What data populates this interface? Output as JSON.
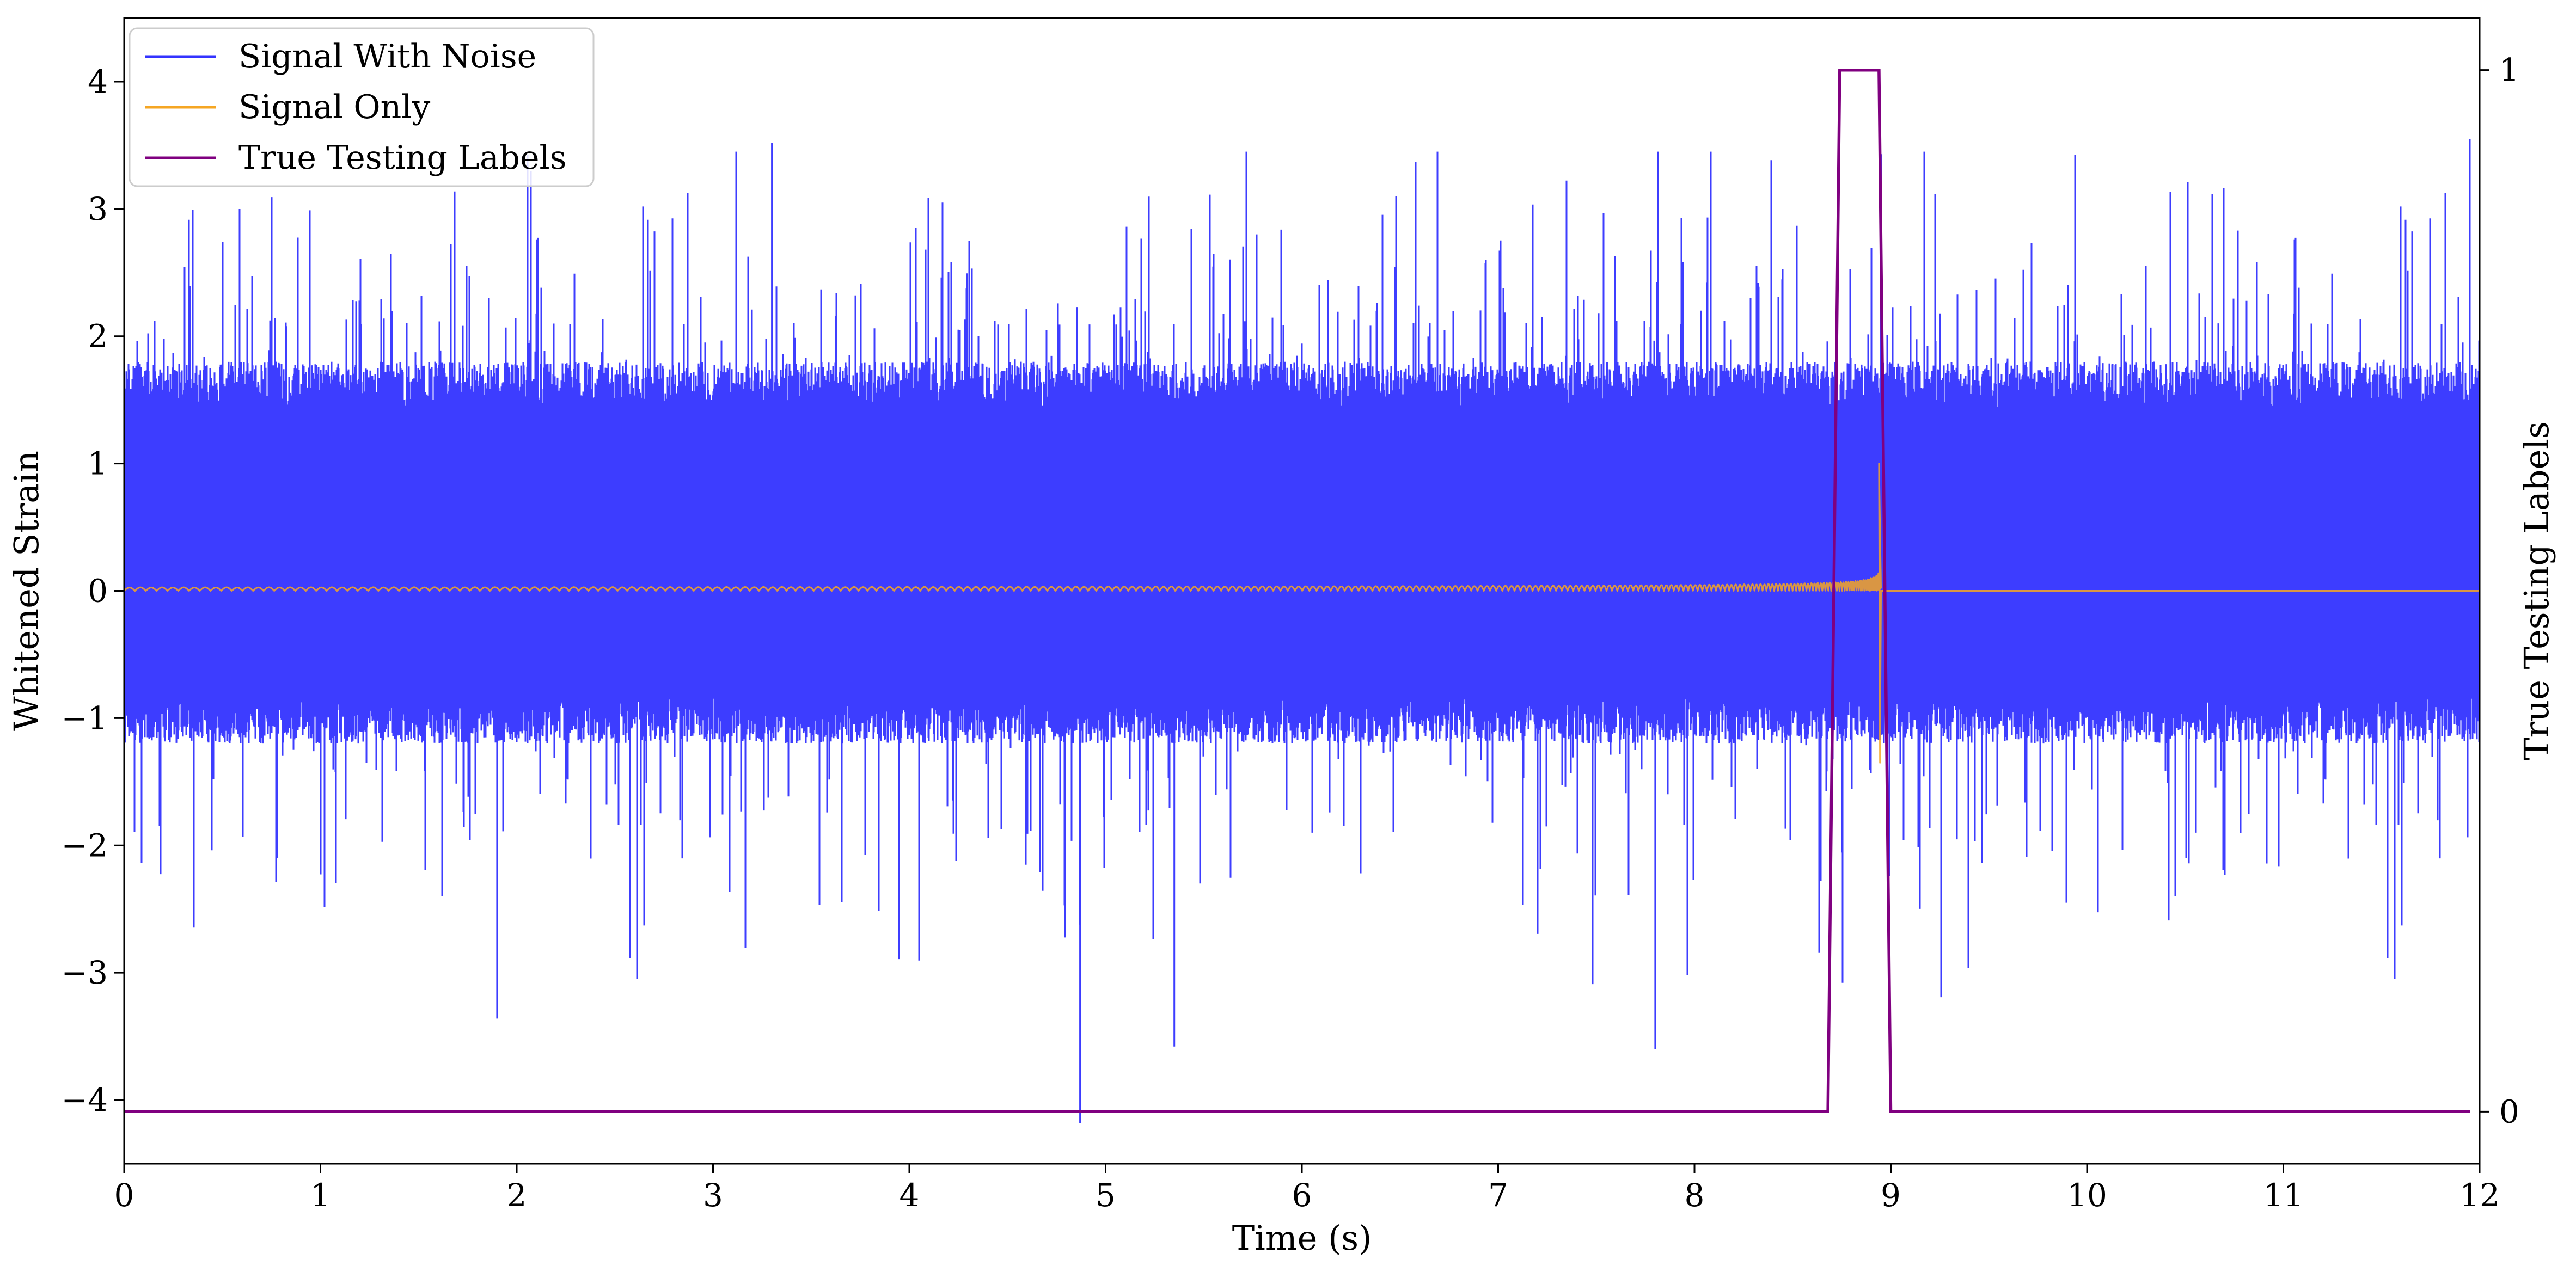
{
  "chart_data": {
    "type": "line",
    "title": "",
    "xlabel": "Time (s)",
    "ylabel": "Whitened Strain",
    "ylabel_right": "True Testing Labels",
    "xlim": [
      0,
      12
    ],
    "ylim": [
      -4.5,
      4.5
    ],
    "ylim_right": [
      -0.05,
      1.05
    ],
    "x_ticks": [
      0,
      1,
      2,
      3,
      4,
      5,
      6,
      7,
      8,
      9,
      10,
      11,
      12
    ],
    "x_tick_labels": [
      "0",
      "1",
      "2",
      "3",
      "4",
      "5",
      "6",
      "7",
      "8",
      "9",
      "10",
      "11",
      "12"
    ],
    "y_ticks": [
      -4,
      -3,
      -2,
      -1,
      0,
      1,
      2,
      3,
      4
    ],
    "y_tick_labels": [
      "−4",
      "−3",
      "−2",
      "−1",
      "0",
      "1",
      "2",
      "3",
      "4"
    ],
    "y_ticks_right": [
      0,
      1
    ],
    "y_tick_labels_right": [
      "0",
      "1"
    ],
    "grid": false,
    "legend_position": "top-left",
    "series": [
      {
        "name": "Signal With Noise",
        "color": "#3333ff",
        "axis": "left",
        "kind": "noisy-waveform",
        "envelope_typical": [
          -1.2,
          1.8
        ],
        "notable_extremes": [
          {
            "x": 3.3,
            "y": 3.52
          },
          {
            "x": 11.95,
            "y": 3.55
          },
          {
            "x": 4.87,
            "y": -4.18
          },
          {
            "x": 1.9,
            "y": -3.36
          },
          {
            "x": 7.8,
            "y": -3.6
          },
          {
            "x": 5.35,
            "y": -3.58
          },
          {
            "x": 8.95,
            "y": 3.43
          }
        ]
      },
      {
        "name": "Signal Only",
        "color": "#f5a623",
        "axis": "left",
        "kind": "chirp",
        "chirp_start": 0,
        "chirp_merger": 8.95,
        "amplitude_start": 0.03,
        "amplitude_peak_high": 1.0,
        "amplitude_peak_low": -1.35,
        "post_merger_value": 0
      },
      {
        "name": "True Testing Labels",
        "color": "#800080",
        "axis": "right",
        "kind": "step",
        "x": [
          0,
          8.68,
          8.74,
          8.94,
          9.0,
          11.95
        ],
        "values": [
          0,
          0,
          1,
          1,
          0,
          0
        ]
      }
    ]
  }
}
